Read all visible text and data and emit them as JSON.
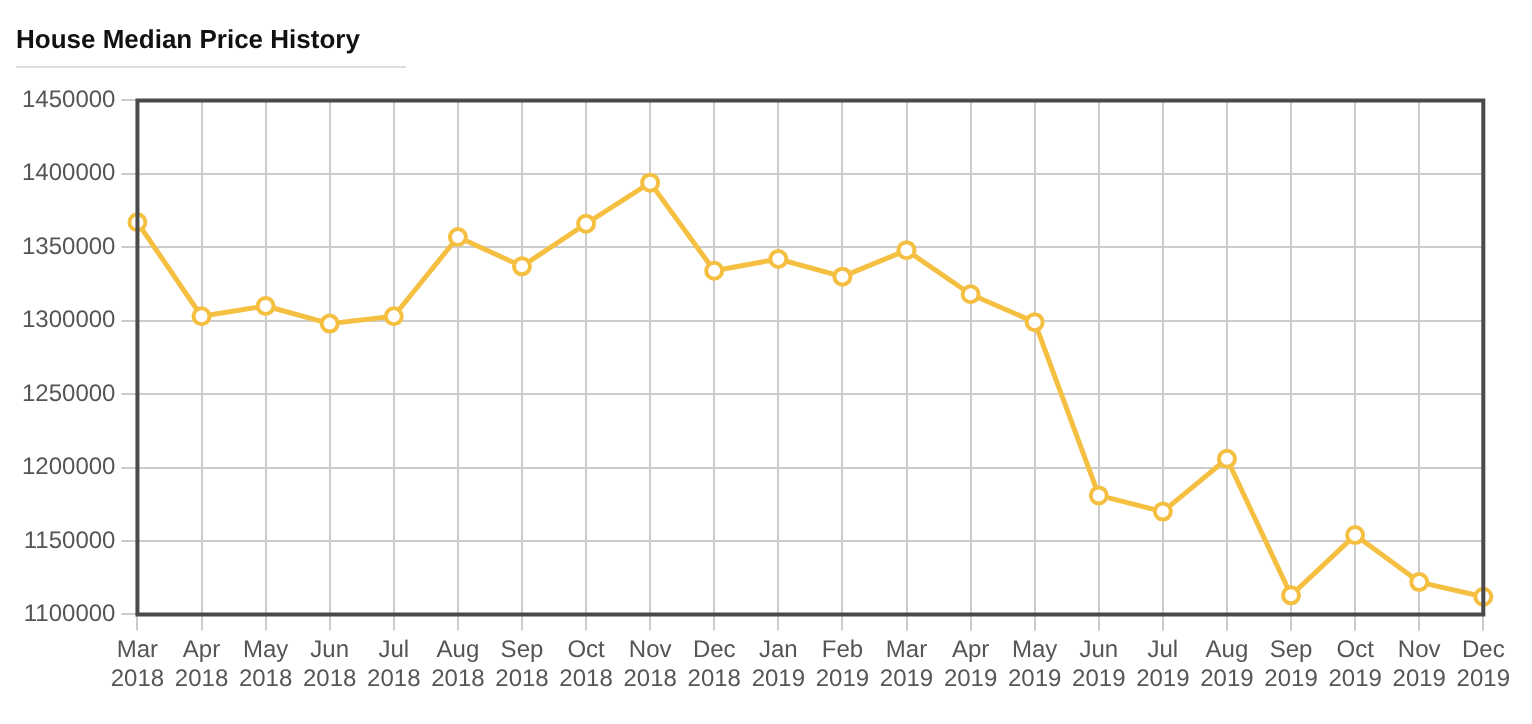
{
  "chart_data": {
    "type": "line",
    "title": "House Median Price History",
    "categories": [
      "Mar 2018",
      "Apr 2018",
      "May 2018",
      "Jun 2018",
      "Jul 2018",
      "Aug 2018",
      "Sep 2018",
      "Oct 2018",
      "Nov 2018",
      "Dec 2018",
      "Jan 2019",
      "Feb 2019",
      "Mar 2019",
      "Apr 2019",
      "May 2019",
      "Jun 2019",
      "Jul 2019",
      "Aug 2019",
      "Sep 2019",
      "Oct 2019",
      "Nov 2019",
      "Dec 2019"
    ],
    "series": [
      {
        "color": "#f5bf42",
        "values": [
          1367000,
          1303000,
          1310000,
          1298000,
          1303000,
          1357000,
          1337000,
          1366000,
          1394000,
          1334000,
          1342000,
          1330000,
          1348000,
          1318000,
          1299000,
          1181000,
          1170000,
          1206000,
          1113000,
          1154000,
          1122000,
          1112000
        ]
      }
    ],
    "ylim": [
      1100000,
      1450000
    ],
    "yticks": [
      1100000,
      1150000,
      1200000,
      1250000,
      1300000,
      1350000,
      1400000,
      1450000
    ],
    "grid": true,
    "legend": false,
    "marker": "circle",
    "line_style": "solid"
  }
}
